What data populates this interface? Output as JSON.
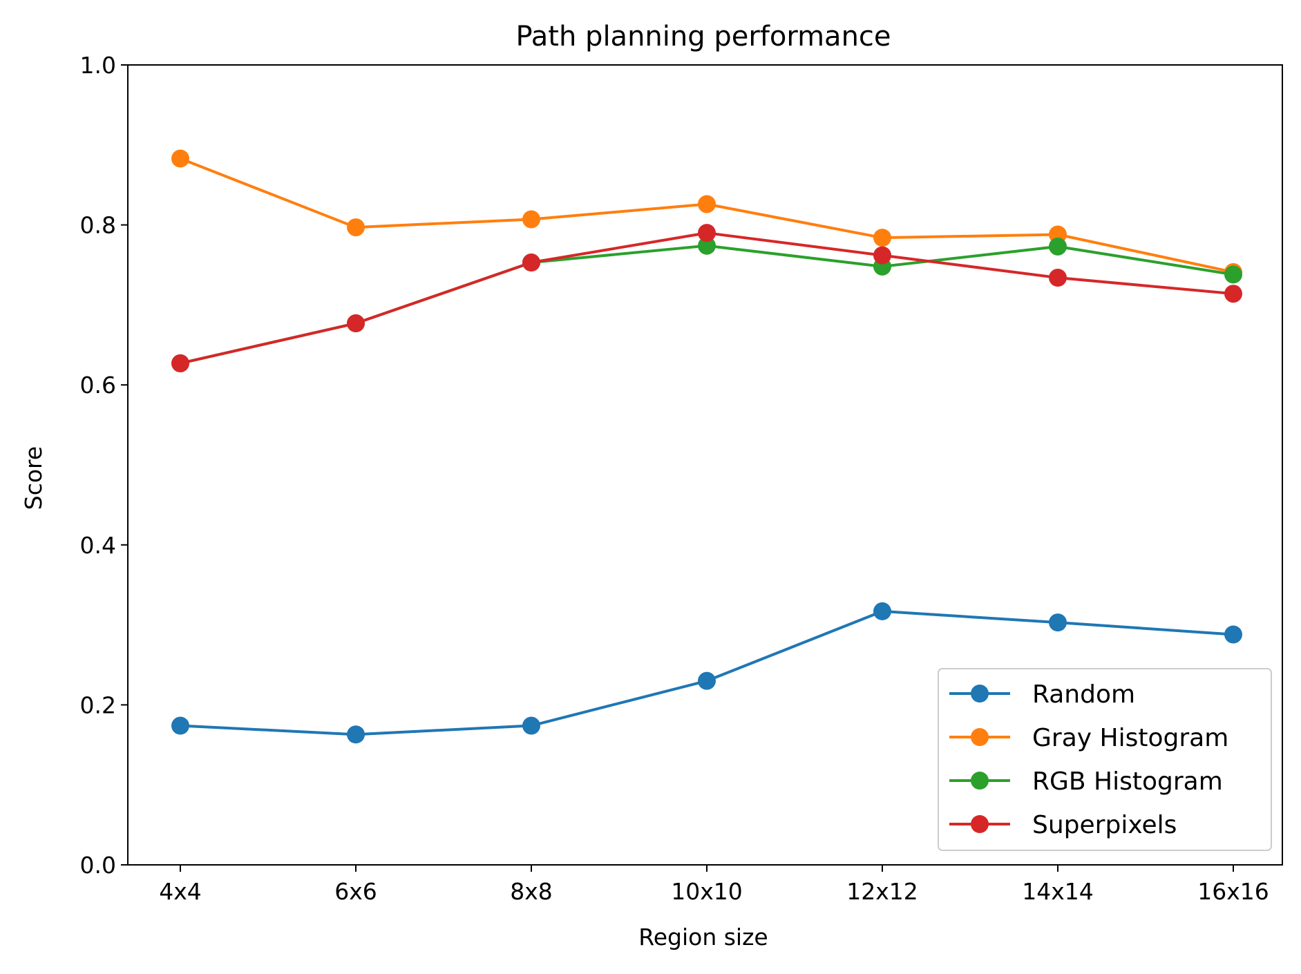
{
  "chart_data": {
    "type": "line",
    "title": "Path planning performance",
    "xlabel": "Region size",
    "ylabel": "Score",
    "categories": [
      "4x4",
      "6x6",
      "8x8",
      "10x10",
      "12x12",
      "14x14",
      "16x16"
    ],
    "ylim": [
      0.0,
      1.0
    ],
    "yticks": [
      "0.0",
      "0.2",
      "0.4",
      "0.6",
      "0.8",
      "1.0"
    ],
    "grid": false,
    "legend_position": "lower right",
    "series": [
      {
        "name": "Random",
        "color": "#1f77b4",
        "values": [
          0.174,
          0.163,
          0.174,
          0.23,
          0.317,
          0.303,
          0.288
        ]
      },
      {
        "name": "Gray Histogram",
        "color": "#ff7f0e",
        "values": [
          0.883,
          0.797,
          0.807,
          0.826,
          0.784,
          0.788,
          0.741
        ]
      },
      {
        "name": "RGB Histogram",
        "color": "#2ca02c",
        "values": [
          0.627,
          0.677,
          0.753,
          0.774,
          0.748,
          0.773,
          0.738
        ]
      },
      {
        "name": "Superpixels",
        "color": "#d62728",
        "values": [
          0.627,
          0.677,
          0.753,
          0.79,
          0.762,
          0.734,
          0.714
        ]
      }
    ]
  }
}
